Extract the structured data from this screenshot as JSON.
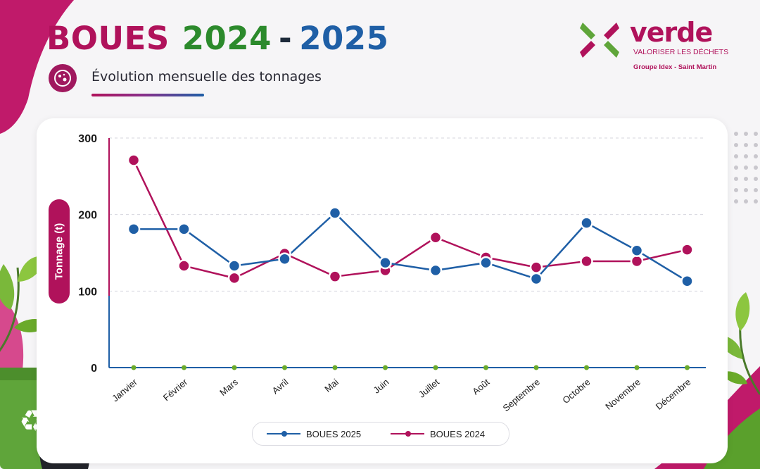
{
  "header": {
    "title_part1": "BOUES",
    "title_part2": "2024",
    "title_sep": "-",
    "title_part3": "2025",
    "subtitle": "Évolution mensuelle des tonnages"
  },
  "logo": {
    "name": "verde",
    "tagline": "VALORISER LES DÉCHETS",
    "group": "Groupe Idex - Saint Martin"
  },
  "colors": {
    "magenta": "#b0125b",
    "blue": "#1f5fa6",
    "green": "#2c8a2c",
    "marker_green": "#6aaa2a"
  },
  "chart_data": {
    "type": "line",
    "ylabel": "Tonnage (t)",
    "xlabel": "",
    "ylim": [
      0,
      300
    ],
    "yticks": [
      0,
      100,
      200,
      300
    ],
    "grid": true,
    "legend_position": "bottom-center",
    "categories": [
      "Janvier",
      "Février",
      "Mars",
      "Avril",
      "Mai",
      "Juin",
      "Juillet",
      "Août",
      "Septembre",
      "Octobre",
      "Novembre",
      "Décembre"
    ],
    "series": [
      {
        "name": "BOUES 2025",
        "color": "#1f5fa6",
        "values": [
          181,
          181,
          133,
          142,
          202,
          137,
          127,
          137,
          116,
          189,
          153,
          113
        ]
      },
      {
        "name": "BOUES 2024",
        "color": "#b0125b",
        "values": [
          271,
          133,
          117,
          149,
          119,
          127,
          170,
          144,
          131,
          139,
          139,
          154
        ]
      }
    ]
  }
}
